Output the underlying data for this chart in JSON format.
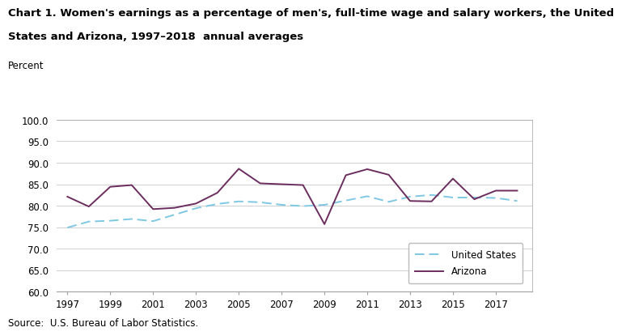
{
  "title_line1": "Chart 1. Women's earnings as a percentage of men's, full-time wage and salary workers, the United",
  "title_line2": "States and Arizona, 1997–2018  annual averages",
  "ylabel": "Percent",
  "source": "Source:  U.S. Bureau of Labor Statistics.",
  "years": [
    1997,
    1998,
    1999,
    2000,
    2001,
    2002,
    2003,
    2004,
    2005,
    2006,
    2007,
    2008,
    2009,
    2010,
    2011,
    2012,
    2013,
    2014,
    2015,
    2016,
    2017,
    2018
  ],
  "us_data": [
    74.9,
    76.3,
    76.5,
    76.9,
    76.4,
    77.9,
    79.4,
    80.4,
    81.0,
    80.8,
    80.2,
    79.9,
    80.2,
    81.2,
    82.2,
    80.9,
    82.1,
    82.5,
    81.9,
    81.9,
    81.8,
    81.1
  ],
  "az_data": [
    82.1,
    79.8,
    84.4,
    84.8,
    79.2,
    79.5,
    80.5,
    83.0,
    88.6,
    85.2,
    85.0,
    84.8,
    75.7,
    87.1,
    88.5,
    87.2,
    81.1,
    81.0,
    86.3,
    81.5,
    83.5,
    83.5
  ],
  "us_color": "#7EC8E3",
  "az_color": "#6B2D5E",
  "ylim": [
    60.0,
    100.0
  ],
  "yticks": [
    60.0,
    65.0,
    70.0,
    75.0,
    80.0,
    85.0,
    90.0,
    95.0,
    100.0
  ],
  "xticks": [
    1997,
    1999,
    2001,
    2003,
    2005,
    2007,
    2009,
    2011,
    2013,
    2015,
    2017
  ],
  "bg_color": "#ffffff",
  "grid_color": "#d0d0d0",
  "border_color": "#a0a0a0",
  "title_fontsize": 9.5,
  "label_fontsize": 8.5,
  "tick_fontsize": 8.5,
  "source_fontsize": 8.5
}
